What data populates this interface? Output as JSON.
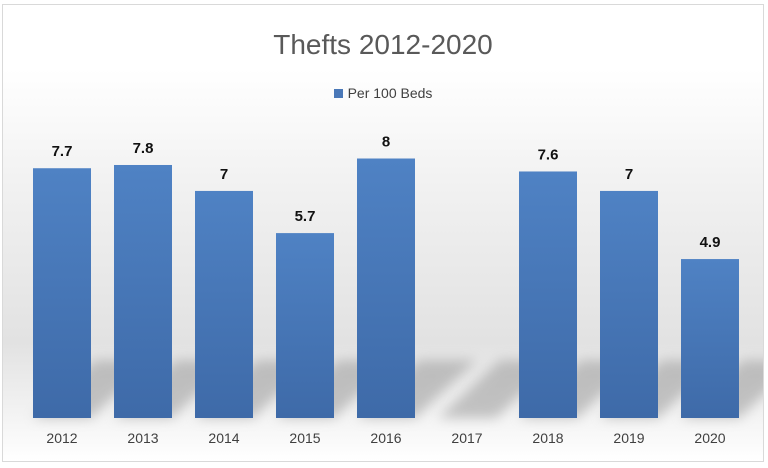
{
  "chart_data": {
    "type": "bar",
    "title": "Thefts 2012-2020",
    "categories": [
      "2012",
      "2013",
      "2014",
      "2015",
      "2016",
      "2017",
      "2018",
      "2019",
      "2020"
    ],
    "series": [
      {
        "name": "Per 100 Beds",
        "values": [
          7.7,
          7.8,
          7,
          5.7,
          8,
          null,
          7.6,
          7,
          4.9
        ],
        "labels": [
          "7.7",
          "7.8",
          "7",
          "5.7",
          "8",
          "",
          "7.6",
          "7",
          "4.9"
        ],
        "color": "#4a78b8"
      }
    ],
    "xlabel": "",
    "ylabel": "",
    "ylim": [
      0,
      10
    ],
    "grid": false,
    "legend": "top-center",
    "data_labels": true
  }
}
